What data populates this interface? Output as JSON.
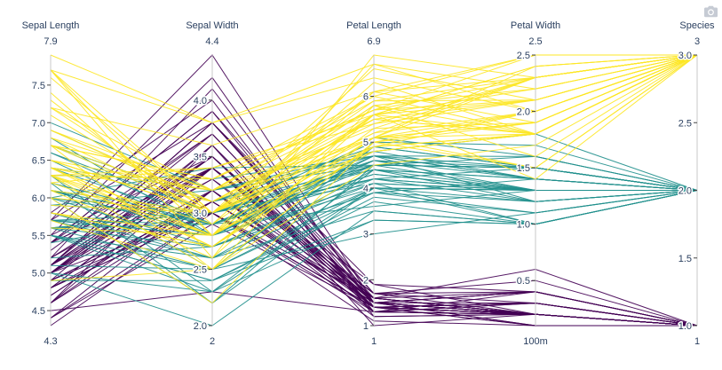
{
  "modebar": {
    "icon": "camera-icon",
    "color": "#c6cbd4"
  },
  "chart_data": {
    "type": "parallel_coordinates",
    "axes": [
      {
        "name": "Sepal Length",
        "range": [
          4.3,
          7.9
        ],
        "range_labels": [
          "4.3",
          "7.9"
        ],
        "ticks": [
          4.5,
          5.0,
          5.5,
          6.0,
          6.5,
          7.0,
          7.5
        ],
        "tick_labels": [
          "4.5",
          "5.0",
          "5.5",
          "6.0",
          "6.5",
          "7.0",
          "7.5"
        ]
      },
      {
        "name": "Sepal Width",
        "range": [
          2.0,
          4.4
        ],
        "range_labels": [
          "2",
          "4.4"
        ],
        "ticks": [
          2.0,
          2.5,
          3.0,
          3.5,
          4.0
        ],
        "tick_labels": [
          "2.0",
          "2.5",
          "3.0",
          "3.5",
          "4.0"
        ]
      },
      {
        "name": "Petal Length",
        "range": [
          1.0,
          6.9
        ],
        "range_labels": [
          "1",
          "6.9"
        ],
        "ticks": [
          1,
          2,
          3,
          4,
          5,
          6
        ],
        "tick_labels": [
          "1",
          "2",
          "3",
          "4",
          "5",
          "6"
        ]
      },
      {
        "name": "Petal Width",
        "range": [
          0.1,
          2.5
        ],
        "range_labels": [
          "100m",
          "2.5"
        ],
        "ticks": [
          0.5,
          1.0,
          1.5,
          2.0,
          2.5
        ],
        "tick_labels": [
          "0.5",
          "1.0",
          "1.5",
          "2.0",
          "2.5"
        ]
      },
      {
        "name": "Species",
        "range": [
          1,
          3
        ],
        "range_labels": [
          "1",
          "3"
        ],
        "ticks": [
          1.0,
          1.5,
          2.0,
          2.5,
          3.0
        ],
        "tick_labels": [
          "1.0",
          "1.5",
          "2.0",
          "2.5",
          "3.0"
        ]
      }
    ],
    "color_by": "Species",
    "colorscale": {
      "1": "#440154",
      "2": "#21908d",
      "3": "#fde725"
    },
    "rows": [
      [
        5.1,
        3.5,
        1.4,
        0.2,
        1
      ],
      [
        4.9,
        3.0,
        1.4,
        0.2,
        1
      ],
      [
        4.7,
        3.2,
        1.3,
        0.2,
        1
      ],
      [
        4.6,
        3.1,
        1.5,
        0.2,
        1
      ],
      [
        5.0,
        3.6,
        1.4,
        0.2,
        1
      ],
      [
        5.4,
        3.9,
        1.7,
        0.4,
        1
      ],
      [
        4.6,
        3.4,
        1.4,
        0.3,
        1
      ],
      [
        5.0,
        3.4,
        1.5,
        0.2,
        1
      ],
      [
        4.4,
        2.9,
        1.4,
        0.2,
        1
      ],
      [
        4.9,
        3.1,
        1.5,
        0.1,
        1
      ],
      [
        5.4,
        3.7,
        1.5,
        0.2,
        1
      ],
      [
        4.8,
        3.4,
        1.6,
        0.2,
        1
      ],
      [
        4.8,
        3.0,
        1.4,
        0.1,
        1
      ],
      [
        4.3,
        3.0,
        1.1,
        0.1,
        1
      ],
      [
        5.8,
        4.0,
        1.2,
        0.2,
        1
      ],
      [
        5.7,
        4.4,
        1.5,
        0.4,
        1
      ],
      [
        5.4,
        3.9,
        1.3,
        0.4,
        1
      ],
      [
        5.1,
        3.5,
        1.4,
        0.3,
        1
      ],
      [
        5.7,
        3.8,
        1.7,
        0.3,
        1
      ],
      [
        5.1,
        3.8,
        1.5,
        0.3,
        1
      ],
      [
        5.4,
        3.4,
        1.7,
        0.2,
        1
      ],
      [
        5.1,
        3.7,
        1.5,
        0.4,
        1
      ],
      [
        4.6,
        3.6,
        1.0,
        0.2,
        1
      ],
      [
        5.1,
        3.3,
        1.7,
        0.5,
        1
      ],
      [
        4.8,
        3.4,
        1.9,
        0.2,
        1
      ],
      [
        5.0,
        3.0,
        1.6,
        0.2,
        1
      ],
      [
        5.0,
        3.4,
        1.6,
        0.4,
        1
      ],
      [
        5.2,
        3.5,
        1.5,
        0.2,
        1
      ],
      [
        5.2,
        3.4,
        1.4,
        0.2,
        1
      ],
      [
        4.7,
        3.2,
        1.6,
        0.2,
        1
      ],
      [
        4.8,
        3.1,
        1.6,
        0.2,
        1
      ],
      [
        5.4,
        3.4,
        1.5,
        0.4,
        1
      ],
      [
        5.2,
        4.1,
        1.5,
        0.1,
        1
      ],
      [
        5.5,
        4.2,
        1.4,
        0.2,
        1
      ],
      [
        4.9,
        3.1,
        1.5,
        0.2,
        1
      ],
      [
        5.0,
        3.2,
        1.2,
        0.2,
        1
      ],
      [
        5.5,
        3.5,
        1.3,
        0.2,
        1
      ],
      [
        4.9,
        3.6,
        1.4,
        0.1,
        1
      ],
      [
        4.4,
        3.0,
        1.3,
        0.2,
        1
      ],
      [
        5.1,
        3.4,
        1.5,
        0.2,
        1
      ],
      [
        5.0,
        3.5,
        1.3,
        0.3,
        1
      ],
      [
        4.5,
        2.3,
        1.3,
        0.3,
        1
      ],
      [
        4.4,
        3.2,
        1.3,
        0.2,
        1
      ],
      [
        5.0,
        3.5,
        1.6,
        0.6,
        1
      ],
      [
        5.1,
        3.8,
        1.9,
        0.4,
        1
      ],
      [
        4.8,
        3.0,
        1.4,
        0.3,
        1
      ],
      [
        5.1,
        3.8,
        1.6,
        0.2,
        1
      ],
      [
        4.6,
        3.2,
        1.4,
        0.2,
        1
      ],
      [
        5.3,
        3.7,
        1.5,
        0.2,
        1
      ],
      [
        5.0,
        3.3,
        1.4,
        0.2,
        1
      ],
      [
        7.0,
        3.2,
        4.7,
        1.4,
        2
      ],
      [
        6.4,
        3.2,
        4.5,
        1.5,
        2
      ],
      [
        6.9,
        3.1,
        4.9,
        1.5,
        2
      ],
      [
        5.5,
        2.3,
        4.0,
        1.3,
        2
      ],
      [
        6.5,
        2.8,
        4.6,
        1.5,
        2
      ],
      [
        5.7,
        2.8,
        4.5,
        1.3,
        2
      ],
      [
        6.3,
        3.3,
        4.7,
        1.6,
        2
      ],
      [
        4.9,
        2.4,
        3.3,
        1.0,
        2
      ],
      [
        6.6,
        2.9,
        4.6,
        1.3,
        2
      ],
      [
        5.2,
        2.7,
        3.9,
        1.4,
        2
      ],
      [
        5.0,
        2.0,
        3.5,
        1.0,
        2
      ],
      [
        5.9,
        3.0,
        4.2,
        1.5,
        2
      ],
      [
        6.0,
        2.2,
        4.0,
        1.0,
        2
      ],
      [
        6.1,
        2.9,
        4.7,
        1.4,
        2
      ],
      [
        5.6,
        2.9,
        3.6,
        1.3,
        2
      ],
      [
        6.7,
        3.1,
        4.4,
        1.4,
        2
      ],
      [
        5.6,
        3.0,
        4.5,
        1.5,
        2
      ],
      [
        5.8,
        2.7,
        4.1,
        1.0,
        2
      ],
      [
        6.2,
        2.2,
        4.5,
        1.5,
        2
      ],
      [
        5.6,
        2.5,
        3.9,
        1.1,
        2
      ],
      [
        5.9,
        3.2,
        4.8,
        1.8,
        2
      ],
      [
        6.1,
        2.8,
        4.0,
        1.3,
        2
      ],
      [
        6.3,
        2.5,
        4.9,
        1.5,
        2
      ],
      [
        6.1,
        2.8,
        4.7,
        1.2,
        2
      ],
      [
        6.4,
        2.9,
        4.3,
        1.3,
        2
      ],
      [
        6.6,
        3.0,
        4.4,
        1.4,
        2
      ],
      [
        6.8,
        2.8,
        4.8,
        1.4,
        2
      ],
      [
        6.7,
        3.0,
        5.0,
        1.7,
        2
      ],
      [
        6.0,
        2.9,
        4.5,
        1.5,
        2
      ],
      [
        5.7,
        2.6,
        3.5,
        1.0,
        2
      ],
      [
        5.5,
        2.4,
        3.8,
        1.1,
        2
      ],
      [
        5.5,
        2.4,
        3.7,
        1.0,
        2
      ],
      [
        5.8,
        2.7,
        3.9,
        1.2,
        2
      ],
      [
        6.0,
        2.7,
        5.1,
        1.6,
        2
      ],
      [
        5.4,
        3.0,
        4.5,
        1.5,
        2
      ],
      [
        6.0,
        3.4,
        4.5,
        1.6,
        2
      ],
      [
        6.7,
        3.1,
        4.7,
        1.5,
        2
      ],
      [
        6.3,
        2.3,
        4.4,
        1.3,
        2
      ],
      [
        5.6,
        3.0,
        4.1,
        1.3,
        2
      ],
      [
        5.5,
        2.5,
        4.0,
        1.3,
        2
      ],
      [
        5.5,
        2.6,
        4.4,
        1.2,
        2
      ],
      [
        6.1,
        3.0,
        4.6,
        1.4,
        2
      ],
      [
        5.8,
        2.6,
        4.0,
        1.2,
        2
      ],
      [
        5.0,
        2.3,
        3.3,
        1.0,
        2
      ],
      [
        5.6,
        2.7,
        4.2,
        1.3,
        2
      ],
      [
        5.7,
        3.0,
        4.2,
        1.2,
        2
      ],
      [
        5.7,
        2.9,
        4.2,
        1.3,
        2
      ],
      [
        6.2,
        2.9,
        4.3,
        1.3,
        2
      ],
      [
        5.1,
        2.5,
        3.0,
        1.1,
        2
      ],
      [
        5.7,
        2.8,
        4.1,
        1.3,
        2
      ],
      [
        6.3,
        3.3,
        6.0,
        2.5,
        3
      ],
      [
        5.8,
        2.7,
        5.1,
        1.9,
        3
      ],
      [
        7.1,
        3.0,
        5.9,
        2.1,
        3
      ],
      [
        6.3,
        2.9,
        5.6,
        1.8,
        3
      ],
      [
        6.5,
        3.0,
        5.8,
        2.2,
        3
      ],
      [
        7.6,
        3.0,
        6.6,
        2.1,
        3
      ],
      [
        4.9,
        2.5,
        4.5,
        1.7,
        3
      ],
      [
        7.3,
        2.9,
        6.3,
        1.8,
        3
      ],
      [
        6.7,
        2.5,
        5.8,
        1.8,
        3
      ],
      [
        7.2,
        3.6,
        6.1,
        2.5,
        3
      ],
      [
        6.5,
        3.2,
        5.1,
        2.0,
        3
      ],
      [
        6.4,
        2.7,
        5.3,
        1.9,
        3
      ],
      [
        6.8,
        3.0,
        5.5,
        2.1,
        3
      ],
      [
        5.7,
        2.5,
        5.0,
        2.0,
        3
      ],
      [
        5.8,
        2.8,
        5.1,
        2.4,
        3
      ],
      [
        6.4,
        3.2,
        5.3,
        2.3,
        3
      ],
      [
        6.5,
        3.0,
        5.5,
        1.8,
        3
      ],
      [
        7.7,
        3.8,
        6.7,
        2.2,
        3
      ],
      [
        7.7,
        2.6,
        6.9,
        2.3,
        3
      ],
      [
        6.0,
        2.2,
        5.0,
        1.5,
        3
      ],
      [
        6.9,
        3.2,
        5.7,
        2.3,
        3
      ],
      [
        5.6,
        2.8,
        4.9,
        2.0,
        3
      ],
      [
        7.7,
        2.8,
        6.7,
        2.0,
        3
      ],
      [
        6.3,
        2.7,
        4.9,
        1.8,
        3
      ],
      [
        6.7,
        3.3,
        5.7,
        2.1,
        3
      ],
      [
        7.2,
        3.2,
        6.0,
        1.8,
        3
      ],
      [
        6.2,
        2.8,
        4.8,
        1.8,
        3
      ],
      [
        6.1,
        3.0,
        4.9,
        1.8,
        3
      ],
      [
        6.4,
        2.8,
        5.6,
        2.1,
        3
      ],
      [
        7.2,
        3.0,
        5.8,
        1.6,
        3
      ],
      [
        7.4,
        2.8,
        6.1,
        1.9,
        3
      ],
      [
        7.9,
        3.8,
        6.4,
        2.0,
        3
      ],
      [
        6.4,
        2.8,
        5.6,
        2.2,
        3
      ],
      [
        6.3,
        2.8,
        5.1,
        1.5,
        3
      ],
      [
        6.1,
        2.6,
        5.6,
        1.4,
        3
      ],
      [
        7.7,
        3.0,
        6.1,
        2.3,
        3
      ],
      [
        6.3,
        3.4,
        5.6,
        2.4,
        3
      ],
      [
        6.4,
        3.1,
        5.5,
        1.8,
        3
      ],
      [
        6.0,
        3.0,
        4.8,
        1.8,
        3
      ],
      [
        6.9,
        3.1,
        5.4,
        2.1,
        3
      ],
      [
        6.7,
        3.1,
        5.6,
        2.4,
        3
      ],
      [
        6.9,
        3.1,
        5.1,
        2.3,
        3
      ],
      [
        5.8,
        2.7,
        5.1,
        1.9,
        3
      ],
      [
        6.8,
        3.2,
        5.9,
        2.3,
        3
      ],
      [
        6.7,
        3.3,
        5.7,
        2.5,
        3
      ],
      [
        6.7,
        3.0,
        5.2,
        2.3,
        3
      ],
      [
        6.3,
        2.5,
        5.0,
        1.9,
        3
      ],
      [
        6.5,
        3.0,
        5.2,
        2.0,
        3
      ],
      [
        6.2,
        3.4,
        5.4,
        2.3,
        3
      ],
      [
        5.9,
        3.0,
        5.1,
        1.8,
        3
      ]
    ]
  }
}
